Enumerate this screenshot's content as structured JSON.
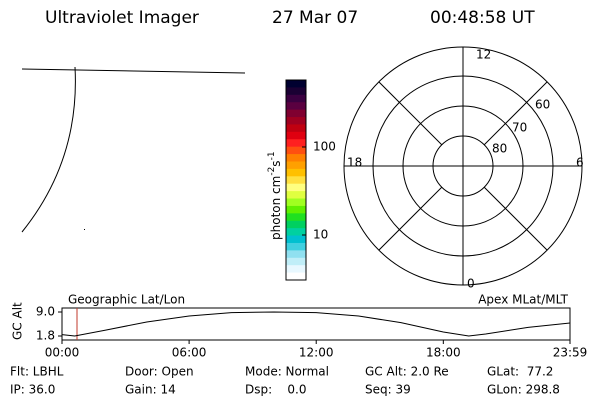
{
  "header": {
    "title": "Ultraviolet Imager",
    "date": "27 Mar 07",
    "time": "00:48:58 UT"
  },
  "colorbar": {
    "label": "photon cm",
    "exp1": "-2",
    "unit2": "s",
    "exp2": "-1",
    "ticks": [
      "100",
      "10"
    ]
  },
  "polar": {
    "hours": [
      "12",
      "18",
      "6",
      "0"
    ],
    "latitudes": [
      "60",
      "70",
      "80"
    ]
  },
  "chart_data": {
    "type": "line",
    "ylabel": "GC Alt",
    "annotations": [
      "Geographic Lat/Lon",
      "Apex MLat/MLT"
    ],
    "x": [
      0,
      0.6,
      2,
      4,
      6,
      8,
      10,
      12,
      14,
      16,
      18,
      19.2,
      20,
      22,
      23.98
    ],
    "values": [
      2.2,
      1.8,
      3.5,
      6.0,
      7.8,
      8.8,
      9.0,
      8.8,
      7.8,
      5.8,
      3.0,
      1.8,
      2.4,
      4.4,
      5.7
    ],
    "color": "#000000",
    "xlim": [
      0,
      23.98
    ],
    "xticks": [
      {
        "value": 0,
        "label": "00:00"
      },
      {
        "value": 6,
        "label": "06:00"
      },
      {
        "value": 12,
        "label": "12:00"
      },
      {
        "value": 18,
        "label": "18:00"
      },
      {
        "value": 23.98,
        "label": "23:59"
      }
    ],
    "ylim": [
      1.8,
      9.0
    ],
    "yticks": [
      {
        "value": 1.8,
        "label": "1.8"
      },
      {
        "value": 9.0,
        "label": "9.0"
      }
    ]
  },
  "footer": {
    "rows": [
      [
        "Flt: LBHL",
        "Door: Open",
        "Mode: Normal",
        "GC Alt: 2.0 Re",
        "GLat:  77.2"
      ],
      [
        "IP: 36.0",
        "Gain: 14",
        "Dsp:    0.0",
        "Seq: 39",
        "GLon: 298.8"
      ]
    ]
  }
}
